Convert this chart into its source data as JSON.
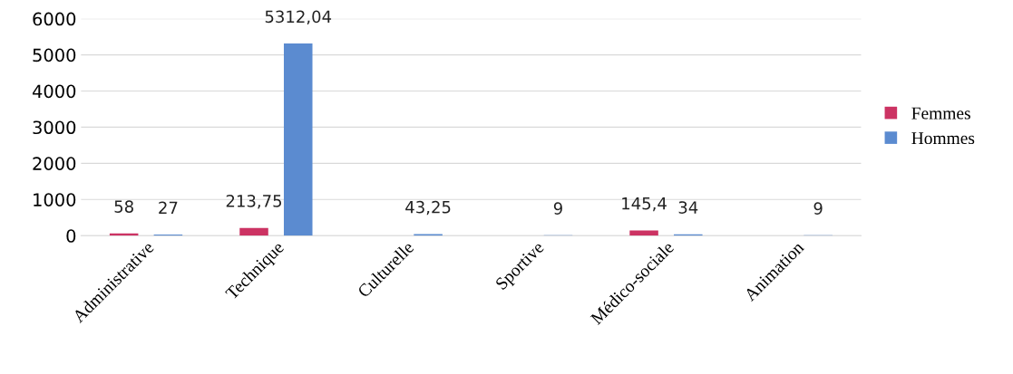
{
  "chart_data": {
    "type": "bar",
    "categories": [
      "Administrative",
      "Technique",
      "Culturelle",
      "Sportive",
      "Médico-sociale",
      "Animation"
    ],
    "series": [
      {
        "name": "Femmes",
        "color": "#cc3363",
        "values": [
          58,
          213.75,
          null,
          null,
          145.4,
          null
        ],
        "value_labels": [
          "58",
          "213,75",
          null,
          null,
          "145,4",
          null
        ]
      },
      {
        "name": "Hommes",
        "color": "#5b8bd0",
        "values": [
          27,
          5312.04,
          43.25,
          9,
          34,
          9
        ],
        "value_labels": [
          "27",
          "5312,04",
          "43,25",
          "9",
          "34",
          "9"
        ]
      }
    ],
    "ylim": [
      0,
      6000
    ],
    "yticks": [
      0,
      1000,
      2000,
      3000,
      4000,
      5000,
      6000
    ],
    "grid": "y",
    "legend": "right"
  }
}
